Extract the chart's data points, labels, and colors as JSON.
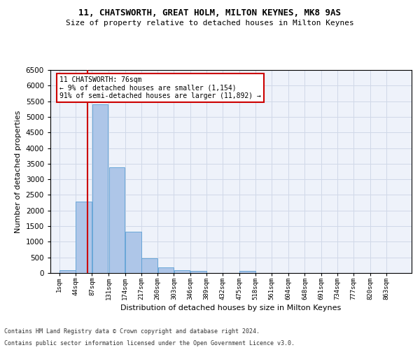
{
  "title1": "11, CHATSWORTH, GREAT HOLM, MILTON KEYNES, MK8 9AS",
  "title2": "Size of property relative to detached houses in Milton Keynes",
  "xlabel": "Distribution of detached houses by size in Milton Keynes",
  "ylabel": "Number of detached properties",
  "bin_labels": [
    "1sqm",
    "44sqm",
    "87sqm",
    "131sqm",
    "174sqm",
    "217sqm",
    "260sqm",
    "303sqm",
    "346sqm",
    "389sqm",
    "432sqm",
    "475sqm",
    "518sqm",
    "561sqm",
    "604sqm",
    "648sqm",
    "691sqm",
    "734sqm",
    "777sqm",
    "820sqm",
    "863sqm"
  ],
  "bin_edges": [
    1,
    44,
    87,
    131,
    174,
    217,
    260,
    303,
    346,
    389,
    432,
    475,
    518,
    561,
    604,
    648,
    691,
    734,
    777,
    820,
    863
  ],
  "bar_heights": [
    80,
    2290,
    5400,
    3380,
    1320,
    480,
    185,
    80,
    60,
    0,
    0,
    60,
    0,
    0,
    0,
    0,
    0,
    0,
    0,
    0
  ],
  "bar_color": "#aec6e8",
  "bar_edgecolor": "#5a9fd4",
  "property_size": 76,
  "annotation_line1": "11 CHATSWORTH: 76sqm",
  "annotation_line2": "← 9% of detached houses are smaller (1,154)",
  "annotation_line3": "91% of semi-detached houses are larger (11,892) →",
  "annotation_box_color": "#ffffff",
  "annotation_box_edgecolor": "#cc0000",
  "vline_color": "#cc0000",
  "grid_color": "#d0d8e8",
  "background_color": "#eef2fa",
  "footer1": "Contains HM Land Registry data © Crown copyright and database right 2024.",
  "footer2": "Contains public sector information licensed under the Open Government Licence v3.0.",
  "ylim_max": 6500,
  "ytick_step": 500
}
